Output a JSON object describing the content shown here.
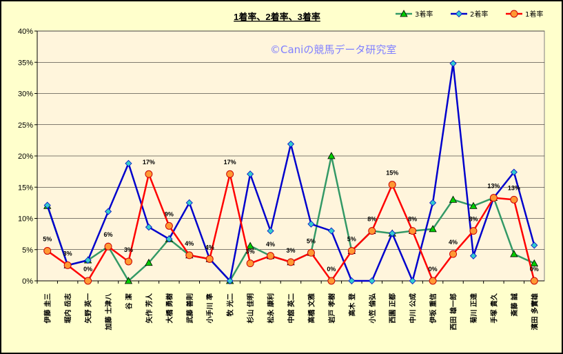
{
  "chart_data": {
    "type": "line",
    "title": "1着率、2着率、3着率",
    "watermark": "©Caniの競馬データ研究室",
    "ylim": [
      0,
      0.4
    ],
    "y_ticks": [
      "0%",
      "5%",
      "10%",
      "15%",
      "20%",
      "25%",
      "30%",
      "35%",
      "40%"
    ],
    "grid": true,
    "legend_position": "top-right",
    "categories": [
      "伊藤 圭三",
      "堀内 岳志",
      "矢野 英一",
      "加藤 士津八",
      "谷 潔",
      "矢作 芳人",
      "大橋 勇樹",
      "武藤 善則",
      "小手川 準",
      "牧 光二",
      "杉山 佳明",
      "松永 康利",
      "中舘 英二",
      "高橋 文雅",
      "岩戸 孝樹",
      "高木 登",
      "小笠 倫弘",
      "西園 正都",
      "中川 公成",
      "伊坂 重信",
      "西田 雄一郎",
      "菊川 正達",
      "手塚 貴久",
      "斎藤 誠",
      "濱田 多實雄"
    ],
    "series": [
      {
        "name": "3着率",
        "color": "#339966",
        "marker": "triangle",
        "marker_fill": "#00cc00",
        "values": [
          0.12,
          0.025,
          0.033,
          0.055,
          0.0,
          0.029,
          0.067,
          0.041,
          0.035,
          0.0,
          0.056,
          0.04,
          0.03,
          0.045,
          0.2,
          0.048,
          0.08,
          0.076,
          0.08,
          0.083,
          0.13,
          0.12,
          0.133,
          0.043,
          0.028
        ]
      },
      {
        "name": "2着率",
        "color": "#0000cc",
        "marker": "diamond",
        "marker_fill": "#33cccc",
        "values": [
          0.121,
          0.025,
          0.033,
          0.111,
          0.188,
          0.086,
          0.067,
          0.125,
          0.035,
          0.0,
          0.171,
          0.08,
          0.219,
          0.091,
          0.08,
          0.0,
          0.0,
          0.076,
          0.0,
          0.125,
          0.348,
          0.04,
          0.133,
          0.174,
          0.057
        ]
      },
      {
        "name": "1着率",
        "color": "#ff0000",
        "marker": "circle",
        "marker_fill": "#ff9933",
        "values": [
          0.048,
          0.025,
          0.0,
          0.055,
          0.031,
          0.171,
          0.088,
          0.041,
          0.035,
          0.171,
          0.028,
          0.04,
          0.03,
          0.045,
          0.0,
          0.048,
          0.08,
          0.154,
          0.08,
          0.0,
          0.043,
          0.08,
          0.133,
          0.13,
          0.0
        ],
        "data_labels": [
          "5%",
          "3%",
          "0%",
          "6%",
          "3%",
          "17%",
          "9%",
          "4%",
          "4%",
          "17%",
          "3%",
          "4%",
          "3%",
          "5%",
          "0%",
          "5%",
          "8%",
          "15%",
          "8%",
          "0%",
          "4%",
          "8%",
          "13%",
          "13%",
          "0%"
        ]
      }
    ]
  }
}
